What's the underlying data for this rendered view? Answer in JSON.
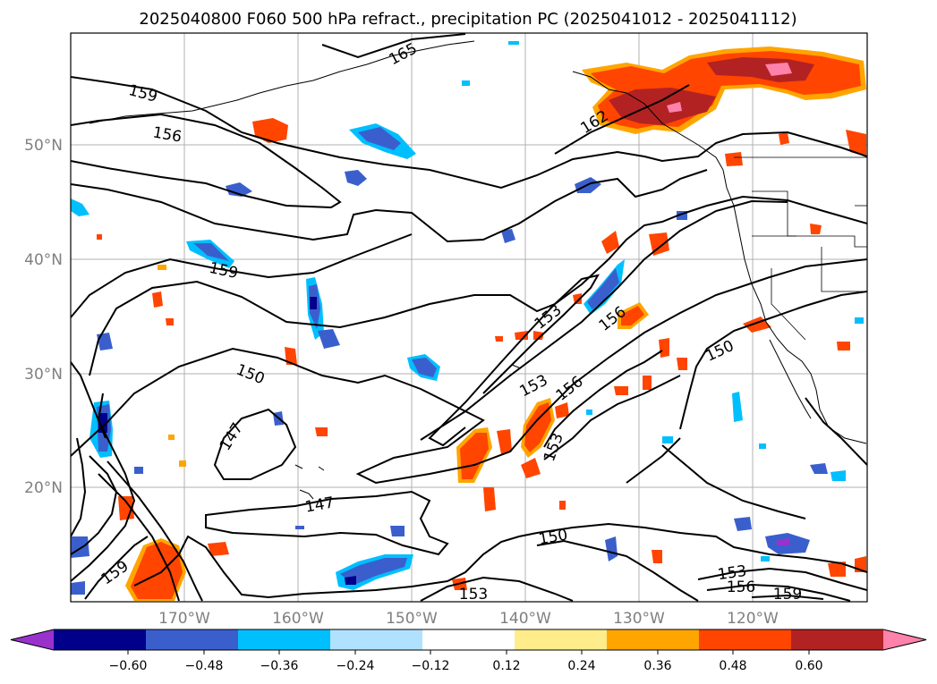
{
  "title": "2025040800 F060 500 hPa refract., precipitation PC (2025041012 - 2025041112)",
  "axes": {
    "lon_ticks": [
      "170°W",
      "160°W",
      "150°W",
      "140°W",
      "130°W",
      "120°W"
    ],
    "lat_ticks": [
      "50°N",
      "40°N",
      "30°N",
      "20°N"
    ],
    "grid": true
  },
  "colorbar": {
    "ticks": [
      "−0.60",
      "−0.48",
      "−0.36",
      "−0.24",
      "−0.12",
      "0.12",
      "0.24",
      "0.36",
      "0.48",
      "0.60"
    ],
    "colors": [
      "#9932cc",
      "#00008b",
      "#3a5fcd",
      "#00bfff",
      "#b0e2ff",
      "#ffffff",
      "#ffec8b",
      "#ffa500",
      "#ff4500",
      "#b22222",
      "#ff82ab"
    ],
    "extend": "both"
  },
  "contour_labels": [
    "165",
    "159",
    "156",
    "162",
    "159",
    "153",
    "156",
    "150",
    "153",
    "156",
    "150",
    "147",
    "153",
    "147",
    "150",
    "159",
    "153",
    "153",
    "156",
    "159"
  ],
  "colors": {
    "positive_high": "#ff82ab",
    "positive_strong": "#b22222",
    "positive_mid": "#ff4500",
    "positive_low": "#ffa500",
    "positive_min": "#ffec8b",
    "negative_min": "#b0e2ff",
    "negative_low": "#00bfff",
    "negative_mid": "#3a5fcd",
    "negative_strong": "#00008b"
  }
}
